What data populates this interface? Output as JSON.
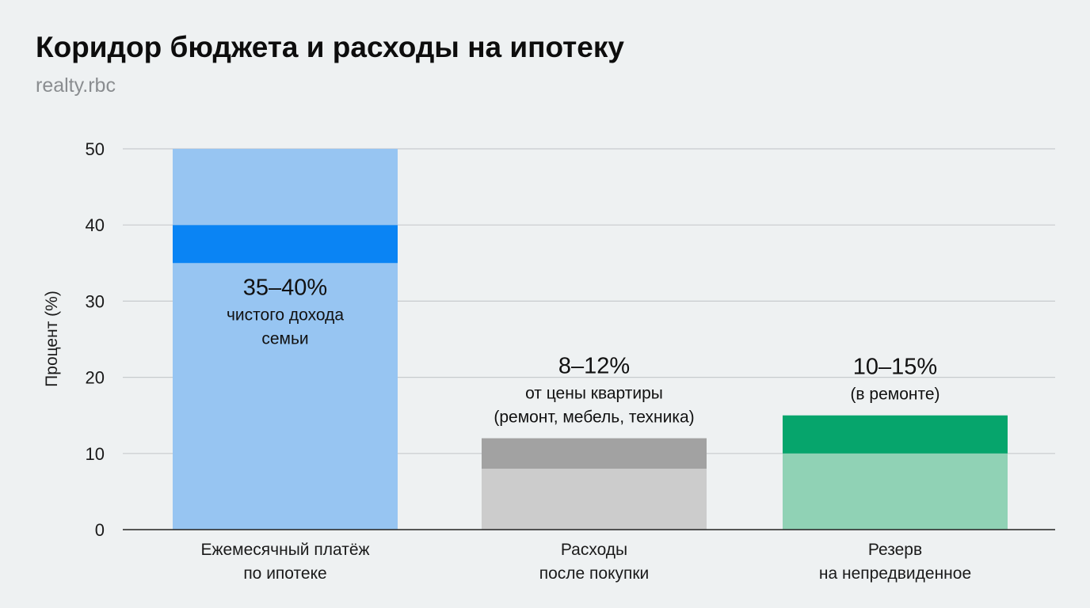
{
  "chart_data": {
    "type": "bar",
    "stacked": true,
    "title": "Коридор бюджета и расходы на ипотеку",
    "subtitle": "realty.rbc",
    "ylabel": "Процент (%)",
    "xlabel": "",
    "ylim": [
      0,
      50
    ],
    "yticks": [
      0,
      10,
      20,
      30,
      40,
      50
    ],
    "grid": true,
    "legend": "none",
    "categories": [
      {
        "label": [
          "Ежемесячный платёж",
          "по ипотеке"
        ],
        "segments": [
          {
            "from": 0,
            "to": 35,
            "color": "#97c5f2"
          },
          {
            "from": 35,
            "to": 40,
            "color": "#0a84f4"
          },
          {
            "from": 40,
            "to": 50,
            "color": "#97c5f2"
          }
        ],
        "annotation": {
          "value": "35–40%",
          "lines": [
            "чистого дохода",
            "семьи"
          ],
          "placement": "inside-below-highlight"
        }
      },
      {
        "label": [
          "Расходы",
          "после покупки"
        ],
        "segments": [
          {
            "from": 0,
            "to": 8,
            "color": "#cccccc"
          },
          {
            "from": 8,
            "to": 12,
            "color": "#a2a2a2"
          }
        ],
        "annotation": {
          "value": "8–12%",
          "lines": [
            "от цены квартиры",
            "(ремонт, мебель, техника)"
          ],
          "placement": "above"
        }
      },
      {
        "label": [
          "Резерв",
          "на непредвиденное"
        ],
        "segments": [
          {
            "from": 0,
            "to": 10,
            "color": "#90d2b5"
          },
          {
            "from": 10,
            "to": 15,
            "color": "#06a56c"
          }
        ],
        "annotation": {
          "value": "10–15%",
          "lines": [
            "(в ремонте)"
          ],
          "placement": "above"
        }
      }
    ],
    "colors": {
      "background": "#eef1f2",
      "grid": "#c8cbce",
      "axis": "#222222"
    }
  }
}
